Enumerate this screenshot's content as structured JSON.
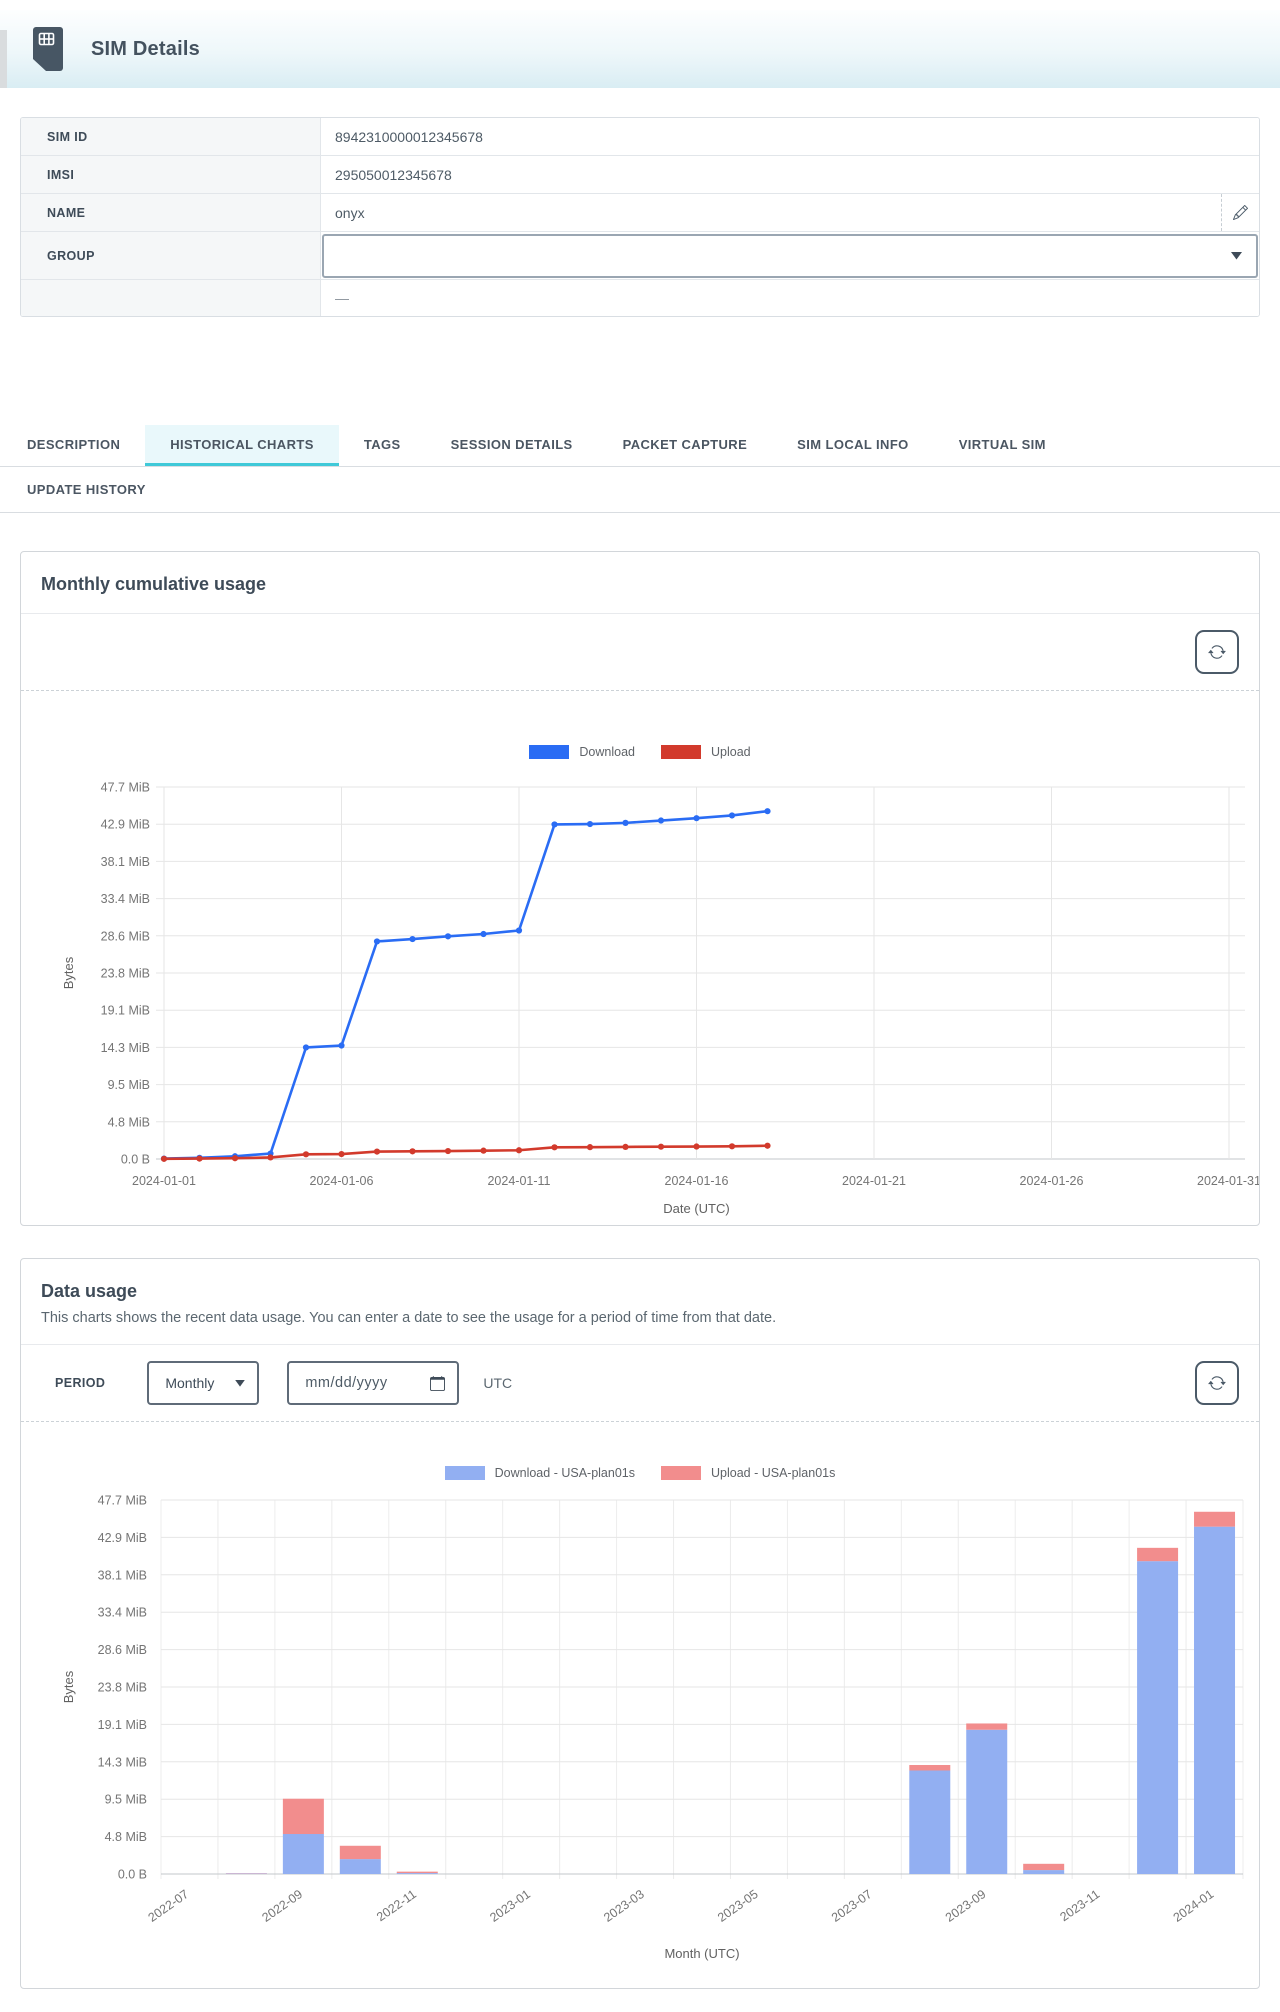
{
  "header": {
    "title": "SIM Details"
  },
  "sim_info": {
    "rows": [
      {
        "label": "SIM ID",
        "value": "8942310000012345678"
      },
      {
        "label": "IMSI",
        "value": "295050012345678"
      },
      {
        "label": "NAME",
        "value": "onyx"
      },
      {
        "label": "GROUP",
        "value": ""
      }
    ],
    "empty_value": "—"
  },
  "tabs": {
    "active": "HISTORICAL CHARTS",
    "row1": [
      {
        "label": "DESCRIPTION"
      },
      {
        "label": "HISTORICAL CHARTS"
      },
      {
        "label": "TAGS"
      },
      {
        "label": "SESSION DETAILS"
      },
      {
        "label": "PACKET CAPTURE"
      },
      {
        "label": "SIM LOCAL INFO"
      },
      {
        "label": "VIRTUAL SIM"
      }
    ],
    "row2": [
      {
        "label": "UPDATE HISTORY"
      }
    ]
  },
  "monthly_card": {
    "title": "Monthly cumulative usage"
  },
  "usage_card": {
    "title": "Data usage",
    "subtitle": "This charts shows the recent data usage. You can enter a date to see the usage for a period of time from that date.",
    "period_label": "PERIOD",
    "period_value": "Monthly",
    "date_placeholder": "mm/dd/yyyy",
    "timezone": "UTC"
  },
  "chart_data": [
    {
      "type": "line",
      "title": "Monthly cumulative usage",
      "xlabel": "Date (UTC)",
      "ylabel": "Bytes",
      "x_start": "2024-01-01",
      "x_range_days": 31,
      "x_ticks": [
        {
          "label": "2024-01-01",
          "day": 0
        },
        {
          "label": "2024-01-06",
          "day": 5
        },
        {
          "label": "2024-01-11",
          "day": 10
        },
        {
          "label": "2024-01-16",
          "day": 15
        },
        {
          "label": "2024-01-21",
          "day": 20
        },
        {
          "label": "2024-01-26",
          "day": 25
        },
        {
          "label": "2024-01-31",
          "day": 30
        }
      ],
      "y_ticks": [
        "0.0 B",
        "4.8 MiB",
        "9.5 MiB",
        "14.3 MiB",
        "19.1 MiB",
        "23.8 MiB",
        "28.6 MiB",
        "33.4 MiB",
        "38.1 MiB",
        "42.9 MiB",
        "47.7 MiB"
      ],
      "y_max_mib": 47.7,
      "grid": true,
      "legend_position": "top",
      "series": [
        {
          "name": "Download",
          "color": "#2a6cf4",
          "unit": "MiB",
          "values": [
            0.05,
            0.15,
            0.35,
            0.7,
            14.3,
            14.55,
            27.9,
            28.2,
            28.55,
            28.85,
            29.3,
            42.9,
            42.95,
            43.1,
            43.4,
            43.7,
            44.05,
            44.6
          ]
        },
        {
          "name": "Upload",
          "color": "#d23a2c",
          "unit": "MiB",
          "values": [
            0.02,
            0.05,
            0.1,
            0.2,
            0.6,
            0.63,
            0.95,
            0.98,
            1.02,
            1.07,
            1.12,
            1.5,
            1.52,
            1.55,
            1.58,
            1.6,
            1.63,
            1.7
          ]
        }
      ]
    },
    {
      "type": "bar",
      "stacked": true,
      "xlabel": "Month (UTC)",
      "ylabel": "Bytes",
      "categories": [
        "2022-07",
        "2022-08",
        "2022-09",
        "2022-10",
        "2022-11",
        "2022-12",
        "2023-01",
        "2023-02",
        "2023-03",
        "2023-04",
        "2023-05",
        "2023-06",
        "2023-07",
        "2023-08",
        "2023-09",
        "2023-10",
        "2023-11",
        "2023-12",
        "2024-01"
      ],
      "label_every": 2,
      "y_ticks": [
        "0.0 B",
        "4.8 MiB",
        "9.5 MiB",
        "14.3 MiB",
        "19.1 MiB",
        "23.8 MiB",
        "28.6 MiB",
        "33.4 MiB",
        "38.1 MiB",
        "42.9 MiB",
        "47.7 MiB"
      ],
      "y_max_mib": 47.7,
      "grid": true,
      "legend_position": "top",
      "series": [
        {
          "name": "Download - USA-plan01s",
          "color": "#92aff2",
          "unit": "MiB",
          "values": [
            0,
            0.06,
            5.1,
            1.9,
            0.12,
            0,
            0,
            0,
            0,
            0,
            0,
            0,
            0,
            13.2,
            18.4,
            0.5,
            0,
            39.9,
            44.3
          ]
        },
        {
          "name": "Upload - USA-plan01s",
          "color": "#f28d8d",
          "unit": "MiB",
          "values": [
            0,
            0.04,
            4.5,
            1.7,
            0.18,
            0,
            0,
            0,
            0,
            0,
            0,
            0,
            0,
            0.7,
            0.8,
            0.8,
            0,
            1.7,
            1.9
          ]
        }
      ]
    }
  ]
}
